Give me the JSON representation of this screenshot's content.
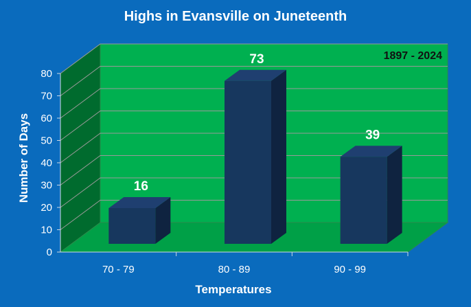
{
  "chart_data": {
    "type": "bar",
    "title": "Highs in Evansville on Juneteenth",
    "annotation": "1897 - 2024",
    "xlabel": "Temperatures",
    "ylabel": "Number of Days",
    "categories": [
      "70 - 79",
      "80 - 89",
      "90 - 99"
    ],
    "values": [
      16,
      73,
      39
    ],
    "ylim": [
      0,
      80
    ],
    "yticks": [
      0,
      10,
      20,
      30,
      40,
      50,
      60,
      70,
      80
    ],
    "grid": true,
    "legend": "none",
    "colors": {
      "background": "#0a6bbd",
      "back_wall": "#00b050",
      "side_wall": "#006b2e",
      "floor": "#00a047",
      "bar_front": "#17375e",
      "bar_top": "#1f3f70",
      "bar_side": "#0f2340",
      "gridline": "#9a9a9a"
    }
  }
}
